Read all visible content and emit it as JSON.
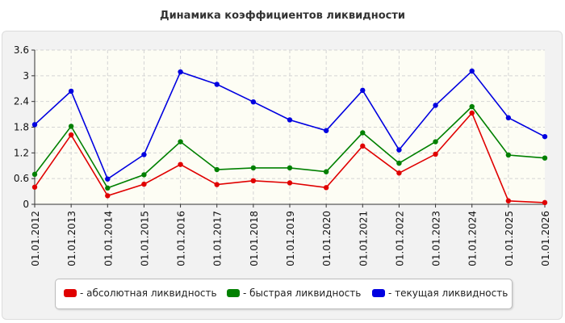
{
  "chart_data": {
    "type": "line",
    "title": "Динамика коэффициентов ликвидности",
    "xlabel": "",
    "ylabel": "",
    "categories": [
      "01.01.2012",
      "01.01.2013",
      "01.01.2014",
      "01.01.2015",
      "01.01.2016",
      "01.01.2017",
      "01.01.2018",
      "01.01.2019",
      "01.01.2020",
      "01.01.2021",
      "01.01.2022",
      "01.01.2023",
      "01.01.2024",
      "01.01.2025",
      "01.01.2026"
    ],
    "y_ticks": [
      "0",
      "0.6",
      "1.2",
      "1.8",
      "2.4",
      "3",
      "3.6"
    ],
    "ylim": [
      0,
      3.6
    ],
    "grid": true,
    "legend_position": "bottom",
    "series": [
      {
        "name": "- абсолютная ликвидность",
        "color": "#e00000",
        "values": [
          0.4,
          1.62,
          0.2,
          0.47,
          0.93,
          0.46,
          0.55,
          0.5,
          0.39,
          1.36,
          0.73,
          1.17,
          2.13,
          0.08,
          0.04
        ]
      },
      {
        "name": "- быстрая ликвидность",
        "color": "#008000",
        "values": [
          0.7,
          1.82,
          0.38,
          0.69,
          1.46,
          0.81,
          0.85,
          0.85,
          0.76,
          1.67,
          0.96,
          1.46,
          2.28,
          1.15,
          1.08
        ]
      },
      {
        "name": "- текущая ликвидность",
        "color": "#0000e0",
        "values": [
          1.86,
          2.64,
          0.59,
          1.16,
          3.09,
          2.8,
          2.39,
          1.97,
          1.72,
          2.66,
          1.27,
          2.31,
          3.11,
          2.02,
          1.58
        ]
      }
    ]
  }
}
